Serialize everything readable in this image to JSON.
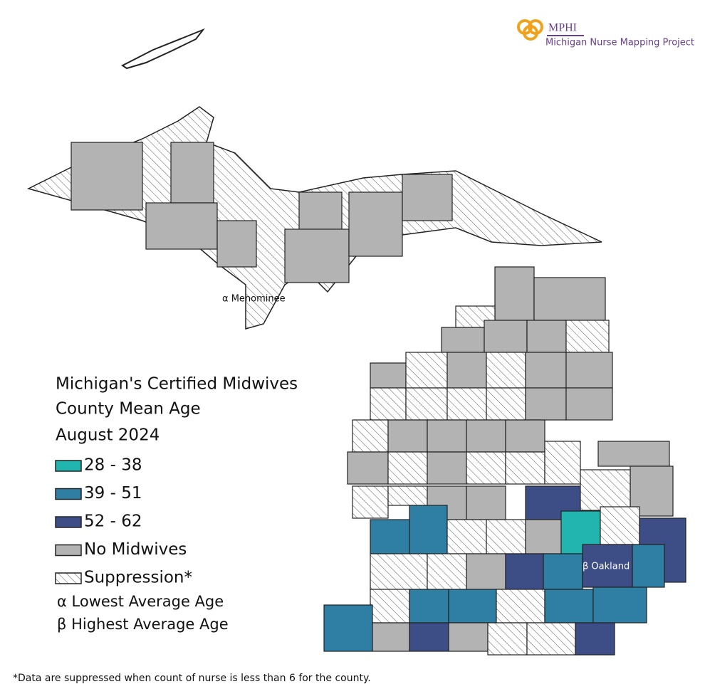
{
  "logo": {
    "name": "MPHI",
    "subtitle": "Michigan Nurse Mapping Project"
  },
  "legend": {
    "title": [
      "Michigan's Certified Midwives",
      "County Mean Age"
    ],
    "date": "August 2024",
    "items": [
      {
        "label": "28 - 38",
        "color": "#22b5b0"
      },
      {
        "label": "39 - 51",
        "color": "#2e7fa3"
      },
      {
        "label": "52 - 62",
        "color": "#3d4d85"
      },
      {
        "label": "No Midwives",
        "color": "#b3b3b3"
      },
      {
        "label": "Suppression*"
      }
    ],
    "notes": [
      "α Lowest Average Age",
      "β Highest Average Age"
    ]
  },
  "annotations": [
    "α Menominee",
    "β Oakland"
  ],
  "footnote": "*Data are suppressed when count of nurse is less than 6 for the county."
}
